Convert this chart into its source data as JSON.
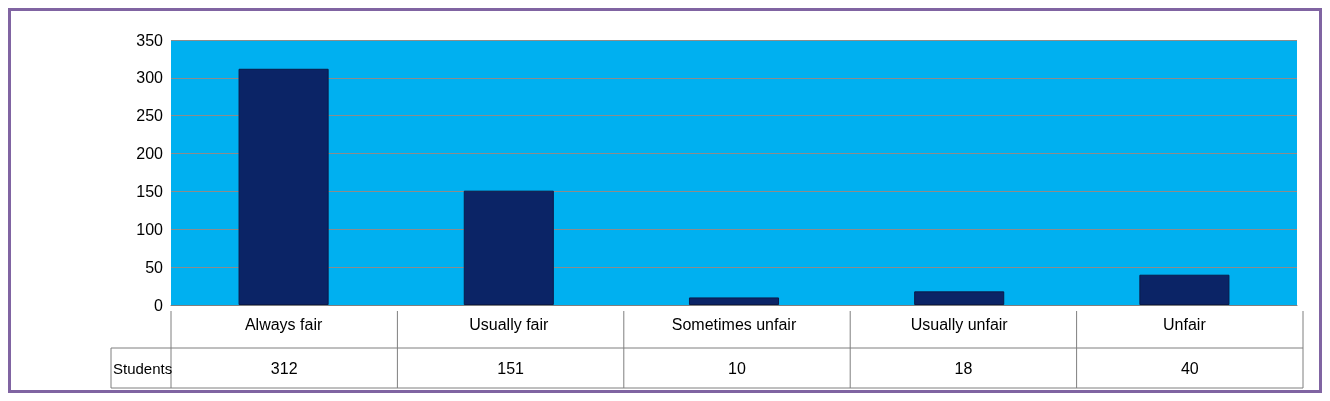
{
  "chart_data": {
    "type": "bar",
    "categories": [
      "Always fair",
      "Usually fair",
      "Sometimes unfair",
      "Usually unfair",
      "Unfair"
    ],
    "series": [
      {
        "name": "Students",
        "color": "#0b2466",
        "values": [
          312,
          151,
          10,
          18,
          40
        ]
      }
    ],
    "ylim": [
      0,
      350
    ],
    "yticks": [
      0,
      50,
      100,
      150,
      200,
      250,
      300,
      350
    ],
    "grid": "y",
    "legend": false,
    "data_labels": true
  }
}
